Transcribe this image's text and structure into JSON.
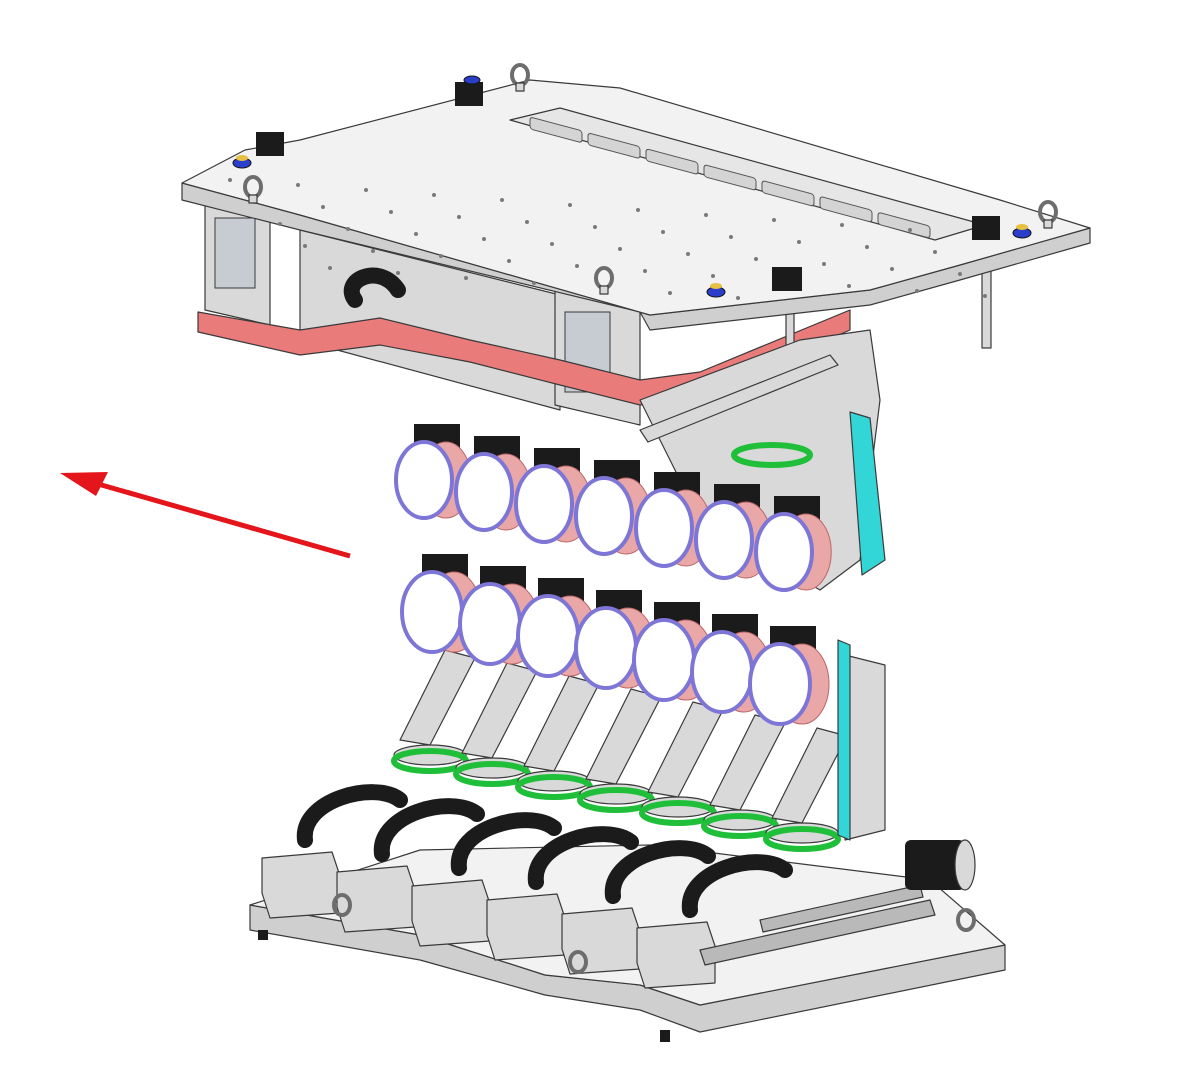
{
  "figure": {
    "kind": "cad-render",
    "background": "#ffffff"
  },
  "colors": {
    "plate": "#f2f2f2",
    "plate_side": "#cfcfcf",
    "outline": "#3a3a3a",
    "red_frame": "#ea7b7b",
    "arrow": "#e4161b",
    "drape": "#e9a7a7",
    "lens_face": "#ffffff",
    "lens_rim": "#7d76d6",
    "green_ring": "#1fbf3a",
    "cyan_panel": "#33d6d6",
    "dark": "#1b1b1b",
    "metal": "#d9d9d9",
    "shadow": "#9a9a9a"
  },
  "icons": {
    "arrow": "red-direction-arrow-icon",
    "eyebolt": "eyebolt-icon",
    "knob": "blue-knob-icon",
    "lens": "lens-module-icon"
  }
}
